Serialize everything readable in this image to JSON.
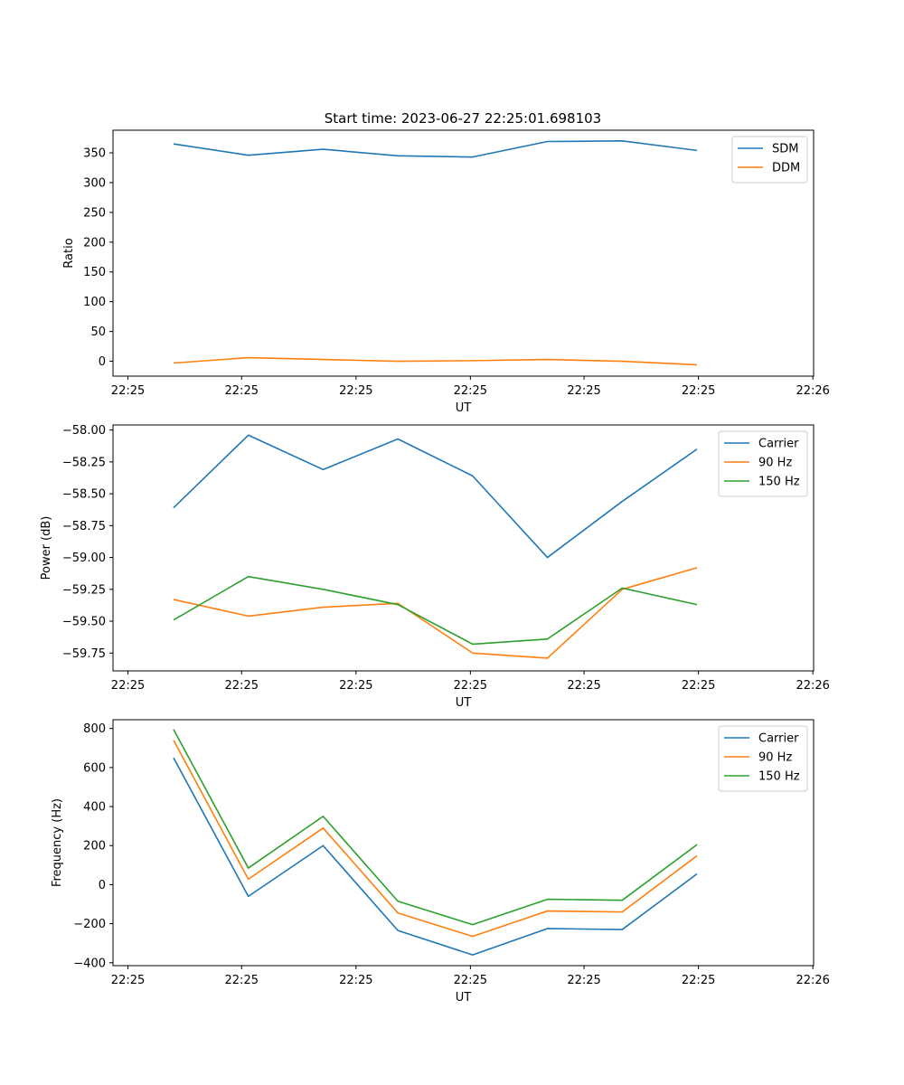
{
  "figure": {
    "title": "Start time: 2023-06-27 22:25:01.698103"
  },
  "chart_data": [
    {
      "type": "line",
      "ylabel": "Ratio",
      "xlabel": "UT",
      "x_tick_labels": [
        "22:25",
        "22:25",
        "22:25",
        "22:25",
        "22:25",
        "22:25",
        "22:26"
      ],
      "x": [
        1,
        2,
        3,
        4,
        5,
        6,
        7,
        8
      ],
      "xlim": [
        0.19,
        9.56
      ],
      "x_ticks": [
        0.39,
        1.91,
        3.44,
        4.97,
        6.49,
        8.02,
        9.55
      ],
      "ylim": [
        -25,
        388
      ],
      "y_ticks": [
        0,
        50,
        100,
        150,
        200,
        250,
        300,
        350
      ],
      "y_tick_labels": [
        "0",
        "50",
        "100",
        "150",
        "200",
        "250",
        "300",
        "350"
      ],
      "legend_position": "upper-right",
      "series": [
        {
          "name": "SDM",
          "color": "#1f77b4",
          "values": [
            365,
            346,
            356,
            345,
            343,
            369,
            370,
            354
          ]
        },
        {
          "name": "DDM",
          "color": "#ff7f0e",
          "values": [
            -3,
            6,
            3,
            0,
            1,
            3,
            0,
            -6
          ]
        }
      ]
    },
    {
      "type": "line",
      "ylabel": "Power (dB)",
      "xlabel": "UT",
      "x_tick_labels": [
        "22:25",
        "22:25",
        "22:25",
        "22:25",
        "22:25",
        "22:25",
        "22:26"
      ],
      "x": [
        1,
        2,
        3,
        4,
        5,
        6,
        7,
        8
      ],
      "xlim": [
        0.19,
        9.56
      ],
      "x_ticks": [
        0.39,
        1.91,
        3.44,
        4.97,
        6.49,
        8.02,
        9.55
      ],
      "ylim": [
        -59.89,
        -57.96
      ],
      "y_ticks": [
        -58.0,
        -58.25,
        -58.5,
        -58.75,
        -59.0,
        -59.25,
        -59.5,
        -59.75
      ],
      "y_tick_labels": [
        "−58.00",
        "−58.25",
        "−58.50",
        "−58.75",
        "−59.00",
        "−59.25",
        "−59.50",
        "−59.75"
      ],
      "legend_position": "upper-right",
      "series": [
        {
          "name": "Carrier",
          "color": "#1f77b4",
          "values": [
            -58.61,
            -58.04,
            -58.31,
            -58.07,
            -58.36,
            -59.0,
            -58.56,
            -58.15
          ]
        },
        {
          "name": "90 Hz",
          "color": "#ff7f0e",
          "values": [
            -59.33,
            -59.46,
            -59.39,
            -59.36,
            -59.75,
            -59.79,
            -59.25,
            -59.08
          ]
        },
        {
          "name": "150 Hz",
          "color": "#2ca02c",
          "values": [
            -59.49,
            -59.15,
            -59.25,
            -59.37,
            -59.68,
            -59.64,
            -59.24,
            -59.37
          ]
        }
      ]
    },
    {
      "type": "line",
      "ylabel": "Frequency (Hz)",
      "xlabel": "UT",
      "x_tick_labels": [
        "22:25",
        "22:25",
        "22:25",
        "22:25",
        "22:25",
        "22:25",
        "22:26"
      ],
      "x": [
        1,
        2,
        3,
        4,
        5,
        6,
        7,
        8
      ],
      "xlim": [
        0.19,
        9.56
      ],
      "x_ticks": [
        0.39,
        1.91,
        3.44,
        4.97,
        6.49,
        8.02,
        9.55
      ],
      "ylim": [
        -415,
        845
      ],
      "y_ticks": [
        -400,
        -200,
        0,
        200,
        400,
        600,
        800
      ],
      "y_tick_labels": [
        "−400",
        "−200",
        "0",
        "200",
        "400",
        "600",
        "800"
      ],
      "legend_position": "upper-right",
      "series": [
        {
          "name": "Carrier",
          "color": "#1f77b4",
          "values": [
            650,
            -60,
            200,
            -235,
            -360,
            -225,
            -230,
            55
          ]
        },
        {
          "name": "90 Hz",
          "color": "#ff7f0e",
          "values": [
            740,
            28,
            290,
            -145,
            -265,
            -135,
            -140,
            148
          ]
        },
        {
          "name": "150 Hz",
          "color": "#2ca02c",
          "values": [
            795,
            85,
            350,
            -85,
            -205,
            -75,
            -80,
            205
          ]
        }
      ]
    }
  ]
}
